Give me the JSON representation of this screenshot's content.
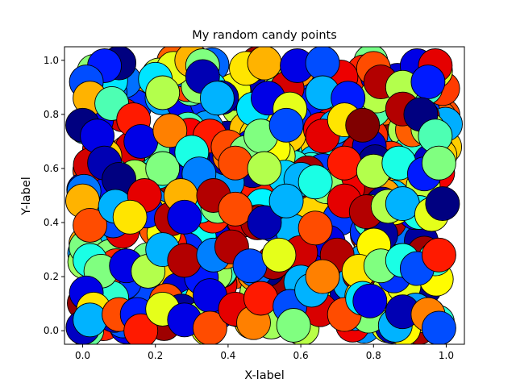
{
  "chart_data": {
    "type": "scatter",
    "title": "My random candy points",
    "xlabel": "X-label",
    "ylabel": "Y-label",
    "xlim": [
      -0.05,
      1.05
    ],
    "ylim": [
      -0.05,
      1.05
    ],
    "grid": false,
    "x_ticks": [
      "0.0",
      "0.2",
      "0.4",
      "0.6",
      "0.8",
      "1.0"
    ],
    "y_ticks": [
      "0.0",
      "0.2",
      "0.4",
      "0.6",
      "0.8",
      "1.0"
    ],
    "marker": "large filled circles with black edges",
    "colormap": "jet",
    "point_count": 400,
    "points": [
      {
        "x": 0.1,
        "y": 0.99,
        "c": 0.0
      },
      {
        "x": 0.06,
        "y": 0.98,
        "c": 0.15
      },
      {
        "x": 0.25,
        "y": 0.97,
        "c": 0.6
      },
      {
        "x": 0.3,
        "y": 1.0,
        "c": 0.7
      },
      {
        "x": 0.33,
        "y": 0.98,
        "c": 0.5
      },
      {
        "x": 0.45,
        "y": 0.97,
        "c": 0.65
      },
      {
        "x": 0.5,
        "y": 0.99,
        "c": 0.7
      },
      {
        "x": 0.59,
        "y": 0.98,
        "c": 0.1
      },
      {
        "x": 0.66,
        "y": 0.99,
        "c": 0.2
      },
      {
        "x": 0.8,
        "y": 0.97,
        "c": 0.8
      },
      {
        "x": 0.92,
        "y": 0.98,
        "c": 0.1
      },
      {
        "x": 0.97,
        "y": 0.98,
        "c": 0.9
      },
      {
        "x": 0.01,
        "y": 0.92,
        "c": 0.2
      },
      {
        "x": 0.02,
        "y": 0.86,
        "c": 0.7
      },
      {
        "x": 0.08,
        "y": 0.84,
        "c": 0.45
      },
      {
        "x": 0.2,
        "y": 0.93,
        "c": 0.35
      },
      {
        "x": 0.22,
        "y": 0.88,
        "c": 0.55
      },
      {
        "x": 0.33,
        "y": 0.94,
        "c": 0.05
      },
      {
        "x": 0.37,
        "y": 0.86,
        "c": 0.3
      },
      {
        "x": 0.47,
        "y": 0.82,
        "c": 0.35
      },
      {
        "x": 0.51,
        "y": 0.86,
        "c": 0.1
      },
      {
        "x": 0.57,
        "y": 0.82,
        "c": 0.6
      },
      {
        "x": 0.66,
        "y": 0.88,
        "c": 0.3
      },
      {
        "x": 0.73,
        "y": 0.86,
        "c": 0.15
      },
      {
        "x": 0.82,
        "y": 0.92,
        "c": 0.95
      },
      {
        "x": 0.88,
        "y": 0.9,
        "c": 0.55
      },
      {
        "x": 0.95,
        "y": 0.92,
        "c": 0.15
      },
      {
        "x": 0.0,
        "y": 0.76,
        "c": 0.0
      },
      {
        "x": 0.04,
        "y": 0.72,
        "c": 0.1
      },
      {
        "x": 0.14,
        "y": 0.78,
        "c": 0.85
      },
      {
        "x": 0.16,
        "y": 0.7,
        "c": 0.1
      },
      {
        "x": 0.24,
        "y": 0.74,
        "c": 0.75
      },
      {
        "x": 0.35,
        "y": 0.72,
        "c": 0.85
      },
      {
        "x": 0.4,
        "y": 0.68,
        "c": 0.8
      },
      {
        "x": 0.45,
        "y": 0.66,
        "c": 0.5
      },
      {
        "x": 0.49,
        "y": 0.72,
        "c": 0.5
      },
      {
        "x": 0.56,
        "y": 0.76,
        "c": 0.2
      },
      {
        "x": 0.66,
        "y": 0.72,
        "c": 0.9
      },
      {
        "x": 0.72,
        "y": 0.78,
        "c": 0.65
      },
      {
        "x": 0.77,
        "y": 0.76,
        "c": 1.0
      },
      {
        "x": 0.88,
        "y": 0.82,
        "c": 0.95
      },
      {
        "x": 0.93,
        "y": 0.8,
        "c": 0.0
      },
      {
        "x": 0.97,
        "y": 0.72,
        "c": 0.45
      },
      {
        "x": 0.06,
        "y": 0.62,
        "c": 0.05
      },
      {
        "x": 0.1,
        "y": 0.56,
        "c": 0.0
      },
      {
        "x": 0.22,
        "y": 0.6,
        "c": 0.5
      },
      {
        "x": 0.3,
        "y": 0.66,
        "c": 0.4
      },
      {
        "x": 0.32,
        "y": 0.58,
        "c": 0.25
      },
      {
        "x": 0.42,
        "y": 0.62,
        "c": 0.8
      },
      {
        "x": 0.5,
        "y": 0.6,
        "c": 0.55
      },
      {
        "x": 0.6,
        "y": 0.56,
        "c": 0.3
      },
      {
        "x": 0.64,
        "y": 0.55,
        "c": 0.4
      },
      {
        "x": 0.72,
        "y": 0.62,
        "c": 0.85
      },
      {
        "x": 0.8,
        "y": 0.59,
        "c": 0.55
      },
      {
        "x": 0.87,
        "y": 0.62,
        "c": 0.4
      },
      {
        "x": 0.94,
        "y": 0.58,
        "c": 0.15
      },
      {
        "x": 0.98,
        "y": 0.62,
        "c": 0.5
      },
      {
        "x": 0.0,
        "y": 0.48,
        "c": 0.7
      },
      {
        "x": 0.02,
        "y": 0.39,
        "c": 0.8
      },
      {
        "x": 0.09,
        "y": 0.46,
        "c": 0.3
      },
      {
        "x": 0.17,
        "y": 0.5,
        "c": 0.9
      },
      {
        "x": 0.13,
        "y": 0.42,
        "c": 0.65
      },
      {
        "x": 0.27,
        "y": 0.5,
        "c": 0.7
      },
      {
        "x": 0.28,
        "y": 0.42,
        "c": 0.1
      },
      {
        "x": 0.36,
        "y": 0.5,
        "c": 0.95
      },
      {
        "x": 0.42,
        "y": 0.45,
        "c": 0.8
      },
      {
        "x": 0.5,
        "y": 0.4,
        "c": 0.05
      },
      {
        "x": 0.56,
        "y": 0.48,
        "c": 0.3
      },
      {
        "x": 0.64,
        "y": 0.38,
        "c": 0.8
      },
      {
        "x": 0.72,
        "y": 0.48,
        "c": 0.9
      },
      {
        "x": 0.78,
        "y": 0.44,
        "c": 0.95
      },
      {
        "x": 0.84,
        "y": 0.46,
        "c": 0.55
      },
      {
        "x": 0.88,
        "y": 0.47,
        "c": 0.3
      },
      {
        "x": 0.96,
        "y": 0.43,
        "c": 0.6
      },
      {
        "x": 0.99,
        "y": 0.47,
        "c": 0.0
      },
      {
        "x": 0.02,
        "y": 0.26,
        "c": 0.4
      },
      {
        "x": 0.05,
        "y": 0.22,
        "c": 0.5
      },
      {
        "x": 0.12,
        "y": 0.24,
        "c": 0.1
      },
      {
        "x": 0.18,
        "y": 0.22,
        "c": 0.55
      },
      {
        "x": 0.22,
        "y": 0.3,
        "c": 0.3
      },
      {
        "x": 0.28,
        "y": 0.26,
        "c": 0.95
      },
      {
        "x": 0.36,
        "y": 0.28,
        "c": 0.25
      },
      {
        "x": 0.41,
        "y": 0.31,
        "c": 0.95
      },
      {
        "x": 0.46,
        "y": 0.24,
        "c": 0.2
      },
      {
        "x": 0.54,
        "y": 0.28,
        "c": 0.6
      },
      {
        "x": 0.6,
        "y": 0.18,
        "c": 0.3
      },
      {
        "x": 0.66,
        "y": 0.2,
        "c": 0.75
      },
      {
        "x": 0.7,
        "y": 0.28,
        "c": 0.95
      },
      {
        "x": 0.76,
        "y": 0.22,
        "c": 0.65
      },
      {
        "x": 0.82,
        "y": 0.24,
        "c": 0.5
      },
      {
        "x": 0.88,
        "y": 0.26,
        "c": 0.4
      },
      {
        "x": 0.92,
        "y": 0.23,
        "c": 0.2
      },
      {
        "x": 0.98,
        "y": 0.28,
        "c": 0.85
      },
      {
        "x": 0.01,
        "y": 0.14,
        "c": 0.1
      },
      {
        "x": 0.03,
        "y": 0.08,
        "c": 0.65
      },
      {
        "x": 0.02,
        "y": 0.04,
        "c": 0.3
      },
      {
        "x": 0.1,
        "y": 0.06,
        "c": 0.8
      },
      {
        "x": 0.15,
        "y": 0.06,
        "c": 0.15
      },
      {
        "x": 0.16,
        "y": 0.0,
        "c": 0.85
      },
      {
        "x": 0.22,
        "y": 0.08,
        "c": 0.6
      },
      {
        "x": 0.28,
        "y": 0.04,
        "c": 0.1
      },
      {
        "x": 0.35,
        "y": 0.13,
        "c": 0.1
      },
      {
        "x": 0.35,
        "y": 0.01,
        "c": 0.8
      },
      {
        "x": 0.42,
        "y": 0.08,
        "c": 0.9
      },
      {
        "x": 0.47,
        "y": 0.03,
        "c": 0.75
      },
      {
        "x": 0.49,
        "y": 0.12,
        "c": 0.85
      },
      {
        "x": 0.57,
        "y": 0.09,
        "c": 0.2
      },
      {
        "x": 0.58,
        "y": 0.02,
        "c": 0.5
      },
      {
        "x": 0.63,
        "y": 0.15,
        "c": 0.3
      },
      {
        "x": 0.66,
        "y": 0.2,
        "c": 0.75
      },
      {
        "x": 0.72,
        "y": 0.06,
        "c": 0.8
      },
      {
        "x": 0.77,
        "y": 0.12,
        "c": 0.35
      },
      {
        "x": 0.79,
        "y": 0.11,
        "c": 0.1
      },
      {
        "x": 0.86,
        "y": 0.02,
        "c": 0.3
      },
      {
        "x": 0.88,
        "y": 0.07,
        "c": 0.05
      },
      {
        "x": 0.95,
        "y": 0.06,
        "c": 0.75
      },
      {
        "x": 0.98,
        "y": 0.01,
        "c": 0.2
      }
    ]
  }
}
